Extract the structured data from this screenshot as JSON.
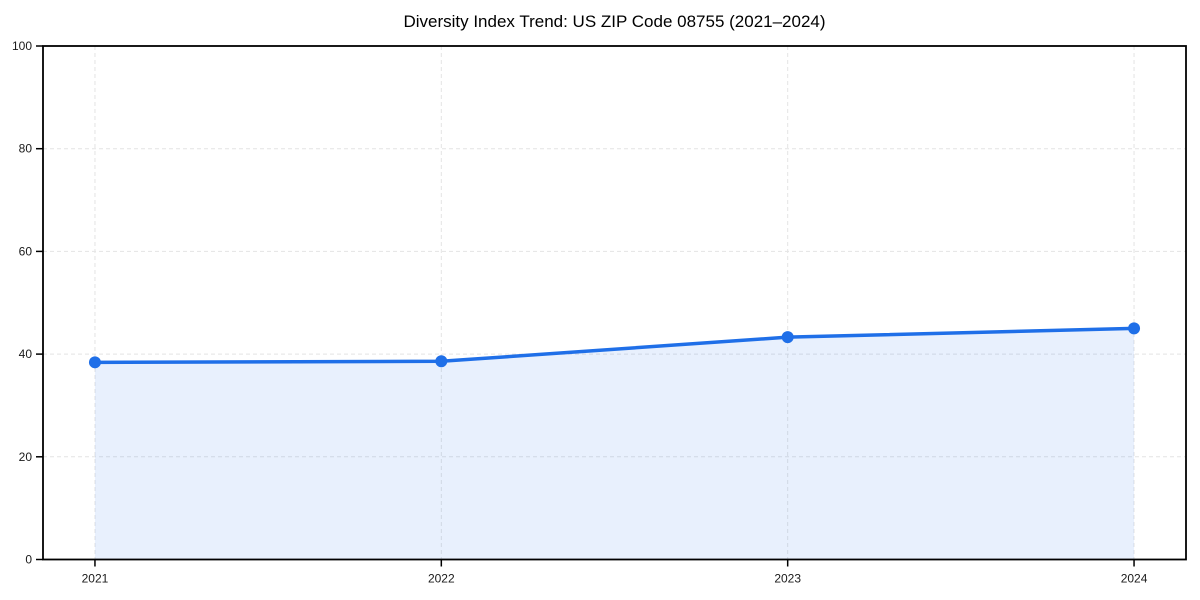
{
  "chart_data": {
    "type": "line",
    "title": "Diversity Index Trend: US ZIP Code 08755 (2021–2024)",
    "categories": [
      "2021",
      "2022",
      "2023",
      "2024"
    ],
    "series": [
      {
        "name": "Diversity Index",
        "values": [
          38.4,
          38.6,
          43.3,
          45.0
        ]
      }
    ],
    "xlabel": "",
    "ylabel": "",
    "ylim": [
      0,
      100
    ],
    "yticks": [
      0,
      20,
      40,
      60,
      80,
      100
    ],
    "grid": "on",
    "grid_style": "dashed",
    "legend_position": "none",
    "marker": "circle",
    "area_fill": true,
    "colors": {
      "line": "#1f6fe8",
      "marker": "#1f6fe8",
      "area": "rgba(31,111,232,0.10)",
      "grid": "#e4e4e4",
      "axis": "#000000",
      "tick_label": "#1a1a1a",
      "title": "#000000",
      "background": "#ffffff"
    }
  }
}
